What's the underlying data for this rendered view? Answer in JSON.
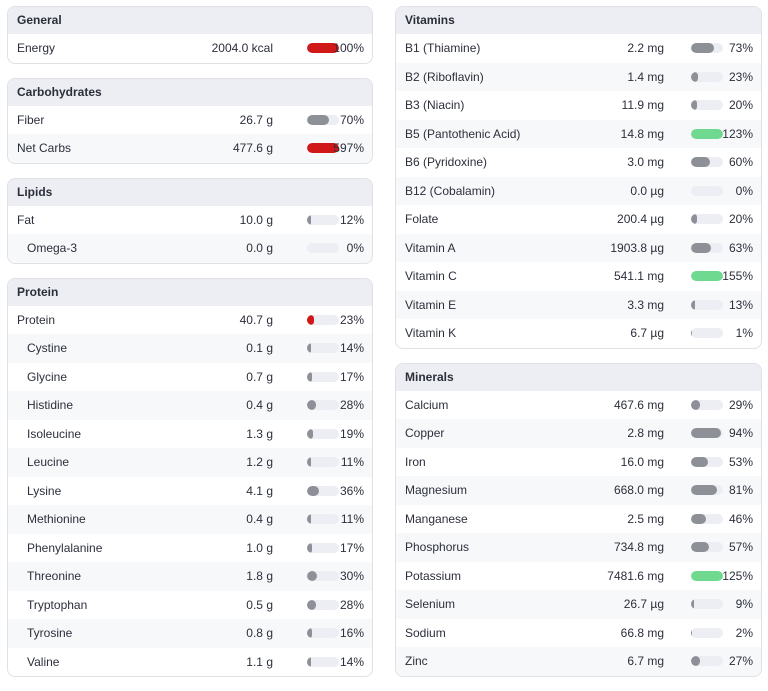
{
  "colors": {
    "gray": "#8e9098",
    "red": "#d01818",
    "green": "#6fd98f",
    "track": "#eceef3"
  },
  "left": [
    {
      "title": "General",
      "rows": [
        {
          "name": "Energy",
          "amount": "2004.0 kcal",
          "percent": "100%",
          "fill": 1.0,
          "color": "red"
        }
      ]
    },
    {
      "title": "Carbohydrates",
      "rows": [
        {
          "name": "Fiber",
          "amount": "26.7 g",
          "percent": "70%",
          "fill": 0.7,
          "color": "gray"
        },
        {
          "name": "Net Carbs",
          "amount": "477.6 g",
          "percent": "597%",
          "fill": 1.0,
          "color": "red"
        }
      ]
    },
    {
      "title": "Lipids",
      "rows": [
        {
          "name": "Fat",
          "amount": "10.0 g",
          "percent": "12%",
          "fill": 0.12,
          "color": "gray"
        },
        {
          "name": "Omega-3",
          "amount": "0.0 g",
          "percent": "0%",
          "fill": 0,
          "color": "gray",
          "sub": true
        }
      ]
    },
    {
      "title": "Protein",
      "rows": [
        {
          "name": "Protein",
          "amount": "40.7 g",
          "percent": "23%",
          "fill": 0.23,
          "color": "red"
        },
        {
          "name": "Cystine",
          "amount": "0.1 g",
          "percent": "14%",
          "fill": 0.14,
          "color": "gray",
          "sub": true
        },
        {
          "name": "Glycine",
          "amount": "0.7 g",
          "percent": "17%",
          "fill": 0.17,
          "color": "gray",
          "sub": true
        },
        {
          "name": "Histidine",
          "amount": "0.4 g",
          "percent": "28%",
          "fill": 0.28,
          "color": "gray",
          "sub": true
        },
        {
          "name": "Isoleucine",
          "amount": "1.3 g",
          "percent": "19%",
          "fill": 0.19,
          "color": "gray",
          "sub": true
        },
        {
          "name": "Leucine",
          "amount": "1.2 g",
          "percent": "11%",
          "fill": 0.11,
          "color": "gray",
          "sub": true
        },
        {
          "name": "Lysine",
          "amount": "4.1 g",
          "percent": "36%",
          "fill": 0.36,
          "color": "gray",
          "sub": true
        },
        {
          "name": "Methionine",
          "amount": "0.4 g",
          "percent": "11%",
          "fill": 0.11,
          "color": "gray",
          "sub": true
        },
        {
          "name": "Phenylalanine",
          "amount": "1.0 g",
          "percent": "17%",
          "fill": 0.17,
          "color": "gray",
          "sub": true
        },
        {
          "name": "Threonine",
          "amount": "1.8 g",
          "percent": "30%",
          "fill": 0.3,
          "color": "gray",
          "sub": true
        },
        {
          "name": "Tryptophan",
          "amount": "0.5 g",
          "percent": "28%",
          "fill": 0.28,
          "color": "gray",
          "sub": true
        },
        {
          "name": "Tyrosine",
          "amount": "0.8 g",
          "percent": "16%",
          "fill": 0.16,
          "color": "gray",
          "sub": true
        },
        {
          "name": "Valine",
          "amount": "1.1 g",
          "percent": "14%",
          "fill": 0.14,
          "color": "gray",
          "sub": true
        }
      ]
    }
  ],
  "right": [
    {
      "title": "Vitamins",
      "rows": [
        {
          "name": "B1 (Thiamine)",
          "amount": "2.2 mg",
          "percent": "73%",
          "fill": 0.73,
          "color": "gray"
        },
        {
          "name": "B2 (Riboflavin)",
          "amount": "1.4 mg",
          "percent": "23%",
          "fill": 0.23,
          "color": "gray"
        },
        {
          "name": "B3 (Niacin)",
          "amount": "11.9 mg",
          "percent": "20%",
          "fill": 0.2,
          "color": "gray"
        },
        {
          "name": "B5 (Pantothenic Acid)",
          "amount": "14.8 mg",
          "percent": "123%",
          "fill": 1.0,
          "color": "green"
        },
        {
          "name": "B6 (Pyridoxine)",
          "amount": "3.0 mg",
          "percent": "60%",
          "fill": 0.6,
          "color": "gray"
        },
        {
          "name": "B12 (Cobalamin)",
          "amount": "0.0 µg",
          "percent": "0%",
          "fill": 0,
          "color": "gray"
        },
        {
          "name": "Folate",
          "amount": "200.4 µg",
          "percent": "20%",
          "fill": 0.2,
          "color": "gray"
        },
        {
          "name": "Vitamin A",
          "amount": "1903.8 µg",
          "percent": "63%",
          "fill": 0.63,
          "color": "gray"
        },
        {
          "name": "Vitamin C",
          "amount": "541.1 mg",
          "percent": "155%",
          "fill": 1.0,
          "color": "green"
        },
        {
          "name": "Vitamin E",
          "amount": "3.3 mg",
          "percent": "13%",
          "fill": 0.13,
          "color": "gray"
        },
        {
          "name": "Vitamin K",
          "amount": "6.7 µg",
          "percent": "1%",
          "fill": 0.01,
          "color": "gray"
        }
      ]
    },
    {
      "title": "Minerals",
      "rows": [
        {
          "name": "Calcium",
          "amount": "467.6 mg",
          "percent": "29%",
          "fill": 0.29,
          "color": "gray"
        },
        {
          "name": "Copper",
          "amount": "2.8 mg",
          "percent": "94%",
          "fill": 0.94,
          "color": "gray"
        },
        {
          "name": "Iron",
          "amount": "16.0 mg",
          "percent": "53%",
          "fill": 0.53,
          "color": "gray"
        },
        {
          "name": "Magnesium",
          "amount": "668.0 mg",
          "percent": "81%",
          "fill": 0.81,
          "color": "gray"
        },
        {
          "name": "Manganese",
          "amount": "2.5 mg",
          "percent": "46%",
          "fill": 0.46,
          "color": "gray"
        },
        {
          "name": "Phosphorus",
          "amount": "734.8 mg",
          "percent": "57%",
          "fill": 0.57,
          "color": "gray"
        },
        {
          "name": "Potassium",
          "amount": "7481.6 mg",
          "percent": "125%",
          "fill": 1.0,
          "color": "green"
        },
        {
          "name": "Selenium",
          "amount": "26.7 µg",
          "percent": "9%",
          "fill": 0.09,
          "color": "gray"
        },
        {
          "name": "Sodium",
          "amount": "66.8 mg",
          "percent": "2%",
          "fill": 0.02,
          "color": "gray"
        },
        {
          "name": "Zinc",
          "amount": "6.7 mg",
          "percent": "27%",
          "fill": 0.27,
          "color": "gray"
        }
      ]
    }
  ]
}
